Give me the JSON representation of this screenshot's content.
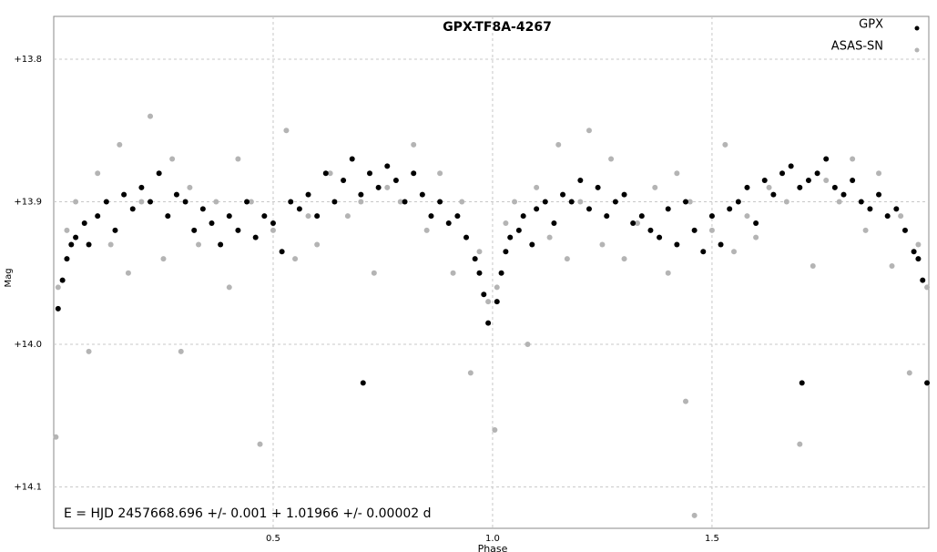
{
  "chart_data": {
    "type": "scatter",
    "title": "GPX-TF8A-4267",
    "xlabel": "Phase",
    "ylabel": "Mag",
    "annotation": "E = HJD 2457668.696 +/- 0.001 + 1.01966 +/- 0.00002 d",
    "xlim": [
      0,
      1.994
    ],
    "ylim": [
      13.77,
      14.129
    ],
    "y_inverted": true,
    "grid": true,
    "legend": "upper right",
    "xticks": [
      0.5,
      {
        "value": 1,
        "label": "1.0"
      },
      1.5
    ],
    "yticks": [
      {
        "value": 13.8,
        "label": "+13.8"
      },
      {
        "value": 13.9,
        "label": "+13.9"
      },
      {
        "value": 14.0,
        "label": "+14.0"
      },
      {
        "value": 14.1,
        "label": "+14.1"
      }
    ],
    "series": [
      {
        "name": "GPX",
        "color": "#000000",
        "x": [
          0.01,
          0.02,
          0.03,
          0.04,
          0.05,
          0.07,
          0.08,
          0.1,
          0.12,
          0.14,
          0.16,
          0.18,
          0.2,
          0.22,
          0.24,
          0.26,
          0.28,
          0.3,
          0.32,
          0.34,
          0.36,
          0.38,
          0.4,
          0.42,
          0.44,
          0.46,
          0.48,
          0.5,
          0.52,
          0.54,
          0.56,
          0.58,
          0.6,
          0.62,
          0.64,
          0.66,
          0.68,
          0.7,
          0.705,
          0.72,
          0.74,
          0.76,
          0.78,
          0.8,
          0.82,
          0.84,
          0.86,
          0.88,
          0.9,
          0.92,
          0.94,
          0.96,
          0.97,
          0.98,
          0.99,
          1.01,
          1.02,
          1.03,
          1.04,
          1.06,
          1.07,
          1.09,
          1.1,
          1.12,
          1.14,
          1.16,
          1.18,
          1.2,
          1.22,
          1.24,
          1.26,
          1.28,
          1.3,
          1.32,
          1.34,
          1.36,
          1.38,
          1.4,
          1.42,
          1.44,
          1.46,
          1.48,
          1.5,
          1.52,
          1.54,
          1.56,
          1.58,
          1.6,
          1.62,
          1.64,
          1.66,
          1.68,
          1.7,
          1.705,
          1.72,
          1.74,
          1.76,
          1.78,
          1.8,
          1.82,
          1.84,
          1.86,
          1.88,
          1.9,
          1.92,
          1.94,
          1.96,
          1.97,
          1.98,
          1.99
        ],
        "values": [
          13.975,
          13.955,
          13.94,
          13.93,
          13.925,
          13.915,
          13.93,
          13.91,
          13.9,
          13.92,
          13.895,
          13.905,
          13.89,
          13.9,
          13.88,
          13.91,
          13.895,
          13.9,
          13.92,
          13.905,
          13.915,
          13.93,
          13.91,
          13.92,
          13.9,
          13.925,
          13.91,
          13.915,
          13.935,
          13.9,
          13.905,
          13.895,
          13.91,
          13.88,
          13.9,
          13.885,
          13.87,
          13.895,
          14.027,
          13.88,
          13.89,
          13.875,
          13.885,
          13.9,
          13.88,
          13.895,
          13.91,
          13.9,
          13.915,
          13.91,
          13.925,
          13.94,
          13.95,
          13.965,
          13.985,
          13.97,
          13.95,
          13.935,
          13.925,
          13.92,
          13.91,
          13.93,
          13.905,
          13.9,
          13.915,
          13.895,
          13.9,
          13.885,
          13.905,
          13.89,
          13.91,
          13.9,
          13.895,
          13.915,
          13.91,
          13.92,
          13.925,
          13.905,
          13.93,
          13.9,
          13.92,
          13.935,
          13.91,
          13.93,
          13.905,
          13.9,
          13.89,
          13.915,
          13.885,
          13.895,
          13.88,
          13.875,
          13.89,
          14.027,
          13.885,
          13.88,
          13.87,
          13.89,
          13.895,
          13.885,
          13.9,
          13.905,
          13.895,
          13.91,
          13.905,
          13.92,
          13.935,
          13.94,
          13.955,
          14.027
        ]
      },
      {
        "name": "ASAS-SN",
        "color": "#b4b4b4",
        "x": [
          0.005,
          0.01,
          0.03,
          0.05,
          0.08,
          0.1,
          0.13,
          0.15,
          0.17,
          0.2,
          0.22,
          0.25,
          0.27,
          0.29,
          0.31,
          0.33,
          0.37,
          0.4,
          0.42,
          0.45,
          0.47,
          0.5,
          0.53,
          0.55,
          0.58,
          0.6,
          0.63,
          0.67,
          0.7,
          0.73,
          0.76,
          0.79,
          0.82,
          0.85,
          0.88,
          0.91,
          0.93,
          0.95,
          0.97,
          0.99,
          1.005,
          1.01,
          1.03,
          1.05,
          1.08,
          1.1,
          1.13,
          1.15,
          1.17,
          1.2,
          1.22,
          1.25,
          1.27,
          1.3,
          1.33,
          1.37,
          1.4,
          1.42,
          1.44,
          1.45,
          1.46,
          1.5,
          1.53,
          1.55,
          1.58,
          1.6,
          1.63,
          1.67,
          1.7,
          1.73,
          1.76,
          1.79,
          1.82,
          1.85,
          1.88,
          1.91,
          1.93,
          1.95,
          1.97,
          1.99
        ],
        "values": [
          14.065,
          13.96,
          13.92,
          13.9,
          14.005,
          13.88,
          13.93,
          13.86,
          13.95,
          13.9,
          13.84,
          13.94,
          13.87,
          14.005,
          13.89,
          13.93,
          13.9,
          13.96,
          13.87,
          13.9,
          14.07,
          13.92,
          13.85,
          13.94,
          13.91,
          13.93,
          13.88,
          13.91,
          13.9,
          13.95,
          13.89,
          13.9,
          13.86,
          13.92,
          13.88,
          13.95,
          13.9,
          14.02,
          13.935,
          13.97,
          14.06,
          13.96,
          13.915,
          13.9,
          14.0,
          13.89,
          13.925,
          13.86,
          13.94,
          13.9,
          13.85,
          13.93,
          13.87,
          13.94,
          13.915,
          13.89,
          13.95,
          13.88,
          14.04,
          13.9,
          14.12,
          13.92,
          13.86,
          13.935,
          13.91,
          13.925,
          13.89,
          13.9,
          14.07,
          13.945,
          13.885,
          13.9,
          13.87,
          13.92,
          13.88,
          13.945,
          13.91,
          14.02,
          13.93,
          13.96
        ]
      }
    ]
  }
}
